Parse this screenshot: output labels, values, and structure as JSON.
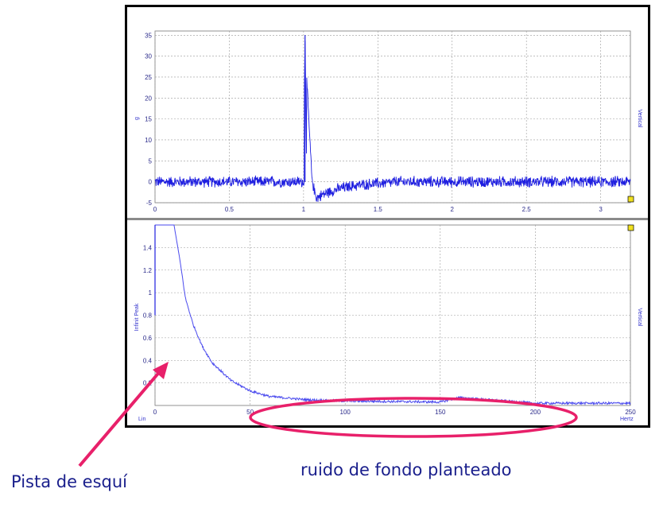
{
  "colors": {
    "trace": "#1f1fe0",
    "trace_light": "#4a4aee",
    "grid": "#9a9a9a",
    "annotation": "#e8206a",
    "annotation_text": "#1a1f8c"
  },
  "chart_data": [
    {
      "id": "time-signal",
      "type": "line",
      "xlabel": "",
      "ylabel": "g",
      "right_label": "Vertical",
      "xlim": [
        0,
        3.2
      ],
      "ylim": [
        -5,
        36
      ],
      "x_ticks": [
        0,
        0.5,
        1,
        1.5,
        2,
        2.5,
        3
      ],
      "x_tick_labels": [
        "0",
        "0.5",
        "1",
        "1.5",
        "2",
        "2.5",
        "3"
      ],
      "y_ticks": [
        -5,
        0,
        5,
        10,
        15,
        20,
        25,
        30,
        35
      ],
      "y_tick_labels": [
        "-5",
        "0",
        "5",
        "10",
        "15",
        "20",
        "25",
        "30",
        "35"
      ],
      "grid": true,
      "series": [
        {
          "name": "Vertical",
          "impulse": {
            "x": 1.01,
            "peak": 35,
            "secondary_peak": 25,
            "undershoot": -4.5,
            "recovery_end": 1.6
          },
          "noise_amplitude": 1.2,
          "points": [
            [
              0,
              0
            ],
            [
              1.0,
              0
            ],
            [
              1.01,
              35
            ],
            [
              1.015,
              25
            ],
            [
              1.03,
              12
            ],
            [
              1.05,
              -2
            ],
            [
              1.08,
              -4.5
            ],
            [
              1.2,
              -2.5
            ],
            [
              1.4,
              -0.8
            ],
            [
              1.6,
              0
            ],
            [
              3.2,
              0
            ]
          ]
        }
      ]
    },
    {
      "id": "spectrum",
      "type": "line",
      "xlabel": "Hertz",
      "ylabel": "Infinit Peak",
      "right_label": "Vertical",
      "corner_label": "Lin",
      "xlim": [
        0,
        250
      ],
      "ylim": [
        0,
        1.6
      ],
      "x_ticks": [
        0,
        50,
        100,
        150,
        200,
        250
      ],
      "x_tick_labels": [
        "0",
        "50",
        "100",
        "150",
        "200",
        "250"
      ],
      "y_ticks": [
        0.2,
        0.4,
        0.6,
        0.8,
        1,
        1.2,
        1.4
      ],
      "y_tick_labels": [
        "0.2",
        "0.4",
        "0.6",
        "0.8",
        "1",
        "1.2",
        "1.4"
      ],
      "grid": true,
      "series": [
        {
          "name": "Vertical",
          "points": [
            [
              0,
              1.6
            ],
            [
              10,
              1.6
            ],
            [
              13,
              1.3
            ],
            [
              16,
              0.95
            ],
            [
              20,
              0.72
            ],
            [
              25,
              0.52
            ],
            [
              30,
              0.38
            ],
            [
              40,
              0.22
            ],
            [
              50,
              0.13
            ],
            [
              60,
              0.08
            ],
            [
              80,
              0.05
            ],
            [
              100,
              0.04
            ],
            [
              150,
              0.03
            ],
            [
              160,
              0.07
            ],
            [
              200,
              0.02
            ],
            [
              250,
              0.02
            ]
          ]
        }
      ]
    }
  ],
  "annotations": {
    "left_label": "Pista de esquí",
    "right_label": "ruido de fondo planteado"
  }
}
